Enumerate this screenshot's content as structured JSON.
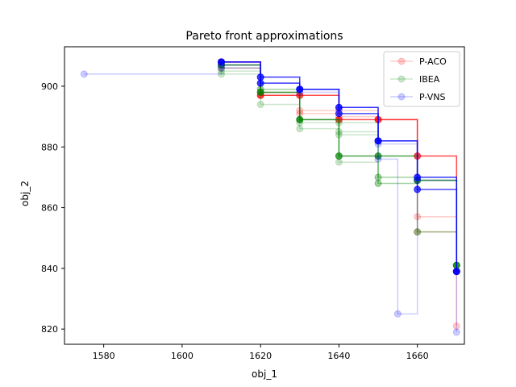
{
  "chart_data": {
    "type": "line",
    "title": "Pareto front approximations",
    "xlabel": "obj_1",
    "ylabel": "obj_2",
    "xlim": [
      1570,
      1672
    ],
    "ylim": [
      815,
      913
    ],
    "x_ticks": [
      1580,
      1600,
      1620,
      1640,
      1660
    ],
    "y_ticks": [
      820,
      840,
      860,
      880,
      900
    ],
    "legend": "top-right",
    "grid": false,
    "series": [
      {
        "name": "P-ACO",
        "color": "#ff0000"
      },
      {
        "name": "IBEA",
        "color": "#008000"
      },
      {
        "name": "P-VNS",
        "color": "#0000ff"
      }
    ],
    "runs": [
      {
        "series": 0,
        "alpha": 0.2,
        "points": [
          [
            1610,
            906
          ],
          [
            1620,
            898
          ],
          [
            1630,
            892
          ],
          [
            1640,
            892
          ],
          [
            1650,
            889
          ],
          [
            1660,
            857
          ],
          [
            1670,
            821
          ]
        ]
      },
      {
        "series": 0,
        "alpha": 0.2,
        "points": [
          [
            1610,
            907
          ],
          [
            1620,
            897
          ],
          [
            1630,
            891
          ],
          [
            1640,
            890
          ],
          [
            1650,
            889
          ],
          [
            1660,
            852
          ],
          [
            1670,
            839
          ]
        ]
      },
      {
        "series": 0,
        "alpha": 0.7,
        "points": [
          [
            1610,
            908
          ],
          [
            1620,
            897
          ],
          [
            1630,
            897
          ],
          [
            1640,
            889
          ],
          [
            1650,
            889
          ],
          [
            1660,
            877
          ],
          [
            1670,
            839
          ]
        ]
      },
      {
        "series": 1,
        "alpha": 0.2,
        "points": [
          [
            1610,
            904
          ],
          [
            1620,
            894
          ],
          [
            1630,
            886
          ],
          [
            1640,
            885
          ],
          [
            1650,
            870
          ],
          [
            1660,
            852
          ],
          [
            1670,
            841
          ]
        ]
      },
      {
        "series": 1,
        "alpha": 0.2,
        "points": [
          [
            1610,
            906
          ],
          [
            1620,
            898
          ],
          [
            1630,
            889
          ],
          [
            1640,
            884
          ],
          [
            1650,
            868
          ],
          [
            1660,
            852
          ],
          [
            1670,
            841
          ]
        ]
      },
      {
        "series": 1,
        "alpha": 0.2,
        "points": [
          [
            1610,
            905
          ],
          [
            1620,
            899
          ],
          [
            1630,
            888
          ],
          [
            1640,
            888
          ],
          [
            1650,
            870
          ],
          [
            1660,
            869
          ],
          [
            1670,
            841
          ]
        ]
      },
      {
        "series": 1,
        "alpha": 0.2,
        "points": [
          [
            1610,
            907
          ],
          [
            1620,
            899
          ],
          [
            1630,
            889
          ],
          [
            1640,
            875
          ],
          [
            1650,
            868
          ],
          [
            1660,
            869
          ],
          [
            1670,
            839
          ]
        ]
      },
      {
        "series": 1,
        "alpha": 0.7,
        "points": [
          [
            1610,
            907
          ],
          [
            1620,
            898
          ],
          [
            1630,
            889
          ],
          [
            1640,
            877
          ],
          [
            1650,
            877
          ],
          [
            1660,
            869
          ],
          [
            1670,
            841
          ]
        ]
      },
      {
        "series": 2,
        "alpha": 0.2,
        "points": [
          [
            1575,
            904
          ],
          [
            1610,
            906
          ],
          [
            1620,
            901
          ],
          [
            1630,
            898
          ],
          [
            1640,
            893
          ],
          [
            1650,
            876
          ],
          [
            1655,
            825
          ],
          [
            1660,
            869
          ],
          [
            1670,
            819
          ]
        ]
      },
      {
        "series": 2,
        "alpha": 0.2,
        "points": [
          [
            1610,
            907
          ],
          [
            1620,
            903
          ],
          [
            1630,
            899
          ],
          [
            1640,
            893
          ],
          [
            1650,
            881
          ],
          [
            1660,
            870
          ],
          [
            1670,
            839
          ]
        ]
      },
      {
        "series": 2,
        "alpha": 0.7,
        "points": [
          [
            1610,
            908
          ],
          [
            1620,
            903
          ],
          [
            1630,
            899
          ],
          [
            1640,
            893
          ],
          [
            1650,
            882
          ],
          [
            1660,
            866
          ],
          [
            1670,
            839
          ]
        ]
      },
      {
        "series": 2,
        "alpha": 0.7,
        "points": [
          [
            1610,
            908
          ],
          [
            1620,
            901
          ],
          [
            1630,
            899
          ],
          [
            1640,
            891
          ],
          [
            1650,
            882
          ],
          [
            1660,
            870
          ],
          [
            1670,
            839
          ]
        ]
      }
    ]
  }
}
